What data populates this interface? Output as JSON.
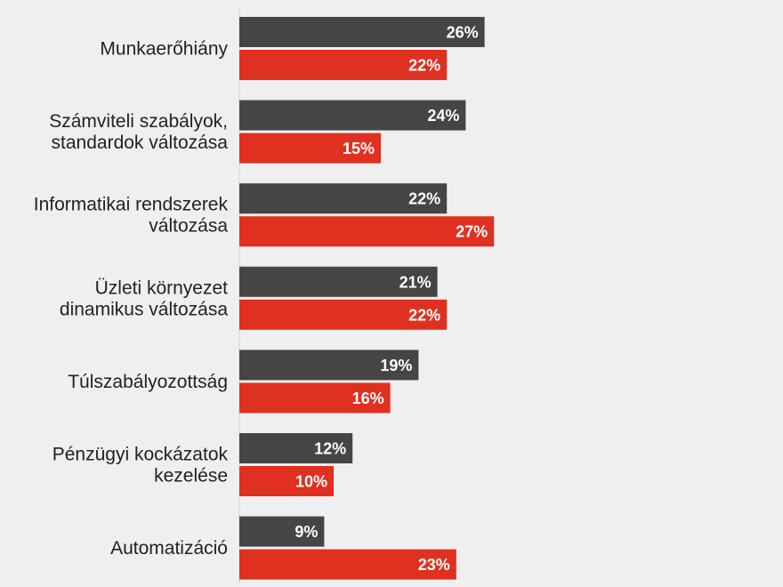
{
  "chart_data": {
    "type": "bar",
    "orientation": "horizontal",
    "categories": [
      [
        "Munkaerőhiány"
      ],
      [
        "Számviteli szabályok,",
        "standardok változása"
      ],
      [
        "Informatikai rendszerek",
        "változása"
      ],
      [
        "Üzleti környezet",
        "dinamikus változása"
      ],
      [
        "Túlszabályozottság"
      ],
      [
        "Pénzügyi kockázatok",
        "kezelése"
      ],
      [
        "Automatizáció"
      ]
    ],
    "series": [
      {
        "color": "#454545",
        "values": [
          26,
          24,
          22,
          21,
          19,
          12,
          9
        ]
      },
      {
        "color": "#e03020",
        "values": [
          22,
          15,
          27,
          22,
          16,
          10,
          23
        ]
      }
    ],
    "value_suffix": "%",
    "title": "",
    "xlabel": "",
    "ylabel": "",
    "grid": false,
    "legend": "none"
  }
}
